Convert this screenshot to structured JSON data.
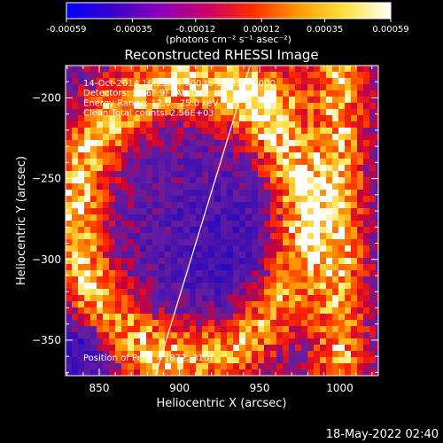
{
  "colorbar": {
    "ticks": [
      "-0.00059",
      "-0.00035",
      "-0.00012",
      "0.00012",
      "0.00035",
      "0.00059"
    ],
    "tick_values": [
      -0.00059,
      -0.00035,
      -0.00012,
      0.00012,
      0.00035,
      0.00059
    ],
    "range": [
      -0.00059,
      0.00059
    ],
    "unit_label": "(photons cm⁻² s⁻¹ asec⁻²)",
    "colors": [
      "#0000ff",
      "#3a00c8",
      "#8a00b8",
      "#c8006a",
      "#ff2a00",
      "#ff9a00",
      "#ffe040",
      "#ffffff"
    ]
  },
  "chart_data": {
    "type": "heatmap",
    "title": "Reconstructed RHESSI Image",
    "xlabel": "Heliocentric X (arcsec)",
    "ylabel": "Heliocentric Y (arcsec)",
    "xlim": [
      829,
      1024
    ],
    "ylim": [
      -372,
      -180
    ],
    "x_ticks": [
      850,
      900,
      950,
      1000
    ],
    "y_ticks": [
      -200,
      -250,
      -300,
      -350
    ],
    "annotations": [
      "14-Oct-2014 16:25:44.000 to 16:31:44.000",
      "Detectors: 3F 6F 9F, Att 0",
      "Energy Range: 12.0 - 25.0 keV",
      "Clean     Total counts: 2.56E+03"
    ],
    "peak_label": "Position of Peak = [872,-310]",
    "peak": [
      872,
      -310
    ],
    "limb_line": [
      [
        885,
        -372
      ],
      [
        944,
        -180
      ]
    ],
    "limb_color": "#ffffff",
    "grid": false
  },
  "footer": {
    "timestamp": "18-May-2022 02:40"
  }
}
